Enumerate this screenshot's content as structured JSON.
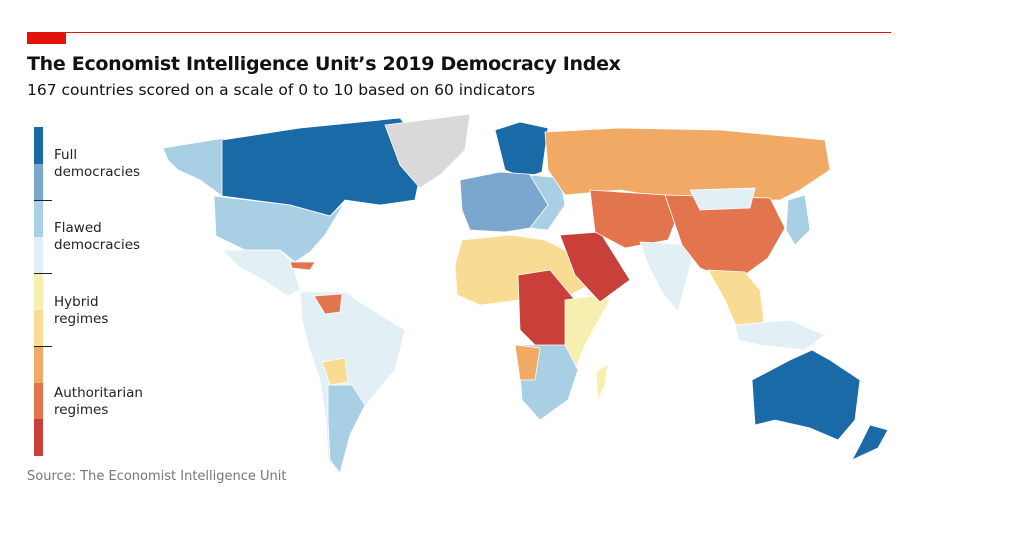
{
  "header": {
    "title": "The Economist Intelligence Unit’s 2019 Democracy Index",
    "subtitle": "167 countries scored on a scale of 0 to 10 based on 60 indicators"
  },
  "legend": {
    "categories": [
      {
        "label": "Full democracies",
        "colors": [
          "#1a6aa8",
          "#7ba7cf"
        ]
      },
      {
        "label": "Flawed democracies",
        "colors": [
          "#a9cfe5",
          "#e2f0f6"
        ]
      },
      {
        "label": "Hybrid regimes",
        "colors": [
          "#f5f0b0",
          "#f8dc94"
        ]
      },
      {
        "label": "Authoritarian regimes",
        "colors": [
          "#f0aa66",
          "#e2744e",
          "#c9403a"
        ]
      }
    ],
    "label_lines": [
      "Full",
      "democracies",
      "Flawed",
      "democracies",
      "Hybrid",
      "regimes",
      "Authoritarian",
      "regimes"
    ]
  },
  "colors": {
    "brand_red": "#e3120b",
    "no_data": "#d9d9d9"
  },
  "source": "Source: The Economist Intelligence Unit"
}
